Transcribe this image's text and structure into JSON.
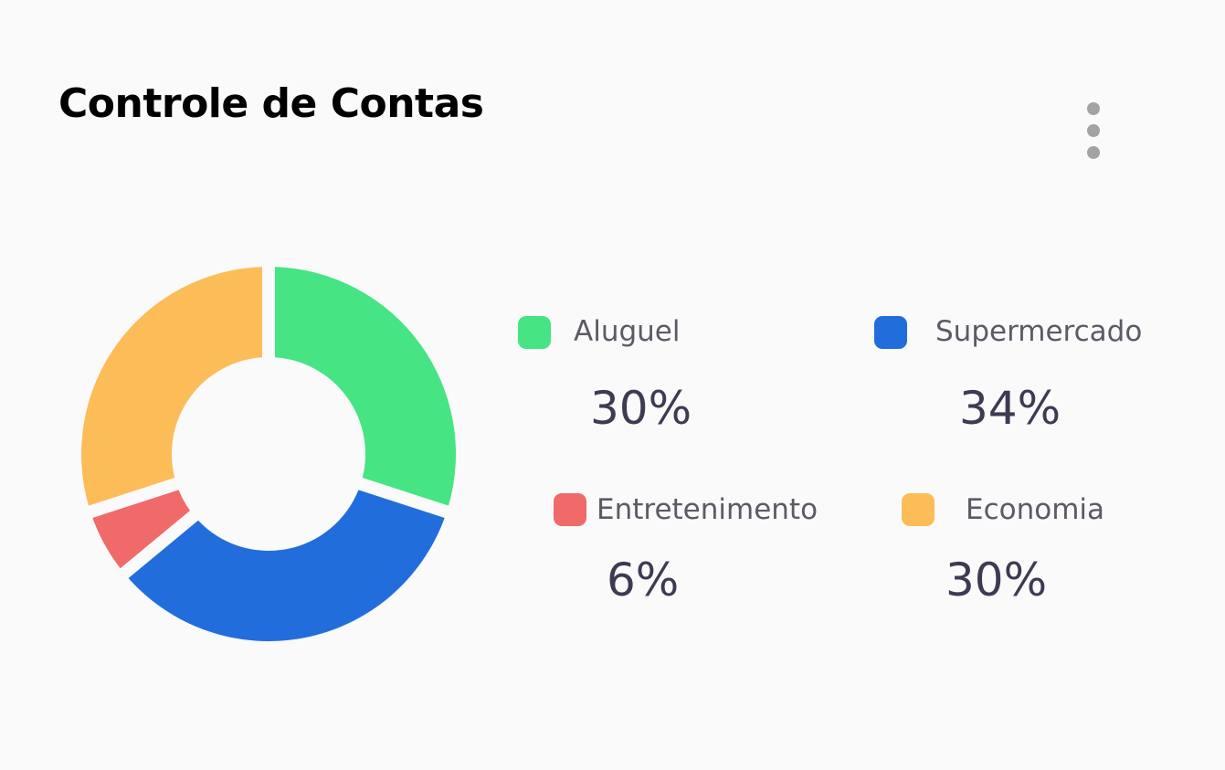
{
  "card": {
    "title": "Controle de Contas",
    "menu_icon": "more-vertical-icon"
  },
  "chart_data": {
    "type": "pie",
    "variant": "donut",
    "categories": [
      "Aluguel",
      "Supermercado",
      "Entretenimento",
      "Economia"
    ],
    "values": [
      30,
      34,
      6,
      30
    ],
    "value_labels": [
      "30%",
      "34%",
      "6%",
      "30%"
    ],
    "colors": [
      "#47e483",
      "#226ddc",
      "#f16a6a",
      "#fcbd58"
    ],
    "legend_placement": "right"
  }
}
